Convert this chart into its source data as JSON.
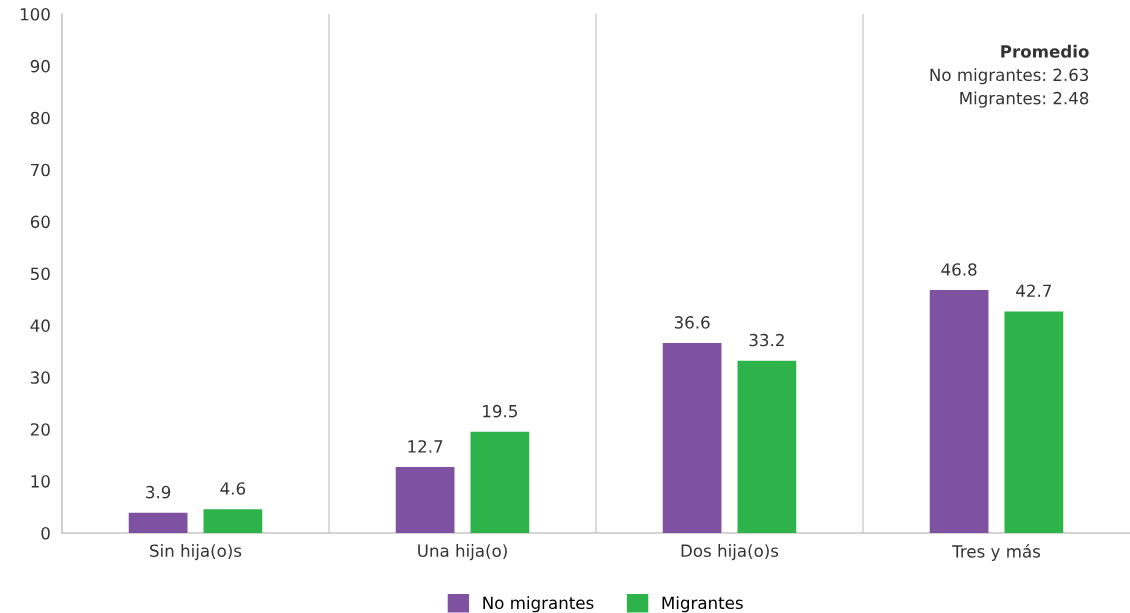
{
  "chart_data": {
    "type": "bar",
    "categories": [
      "Sin hija(o)s",
      "Una hija(o)",
      "Dos hija(o)s",
      "Tres y más"
    ],
    "series": [
      {
        "name": "No migrantes",
        "color": "#7f52a1",
        "values": [
          3.9,
          12.7,
          36.6,
          46.8
        ]
      },
      {
        "name": "Migrantes",
        "color": "#2db34a",
        "values": [
          4.6,
          19.5,
          33.2,
          42.7
        ]
      }
    ],
    "ylim": [
      0,
      100
    ],
    "yticks": [
      0,
      10,
      20,
      30,
      40,
      50,
      60,
      70,
      80,
      90,
      100
    ],
    "grid": "x",
    "legend": "bottom",
    "data_labels": true,
    "annotations": [
      "Promedio",
      "No migrantes: 2.63",
      "Migrantes: 2.48"
    ]
  }
}
